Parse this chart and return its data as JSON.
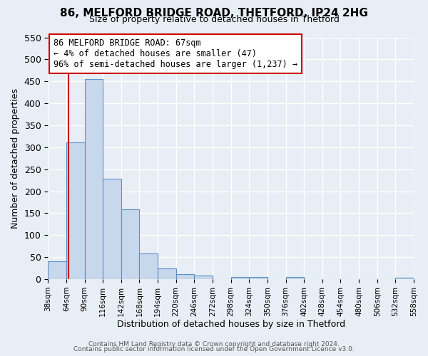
{
  "title1": "86, MELFORD BRIDGE ROAD, THETFORD, IP24 2HG",
  "title2": "Size of property relative to detached houses in Thetford",
  "xlabel": "Distribution of detached houses by size in Thetford",
  "ylabel": "Number of detached properties",
  "bar_color": "#c8d8ec",
  "bar_edge_color": "#5b8fc7",
  "background_color": "#e8eef5",
  "grid_color": "#ffffff",
  "bins": [
    38,
    64,
    90,
    116,
    142,
    168,
    194,
    220,
    246,
    272,
    298,
    324,
    350,
    376,
    402,
    428,
    454,
    480,
    506,
    532,
    558
  ],
  "counts": [
    40,
    311,
    456,
    229,
    159,
    58,
    25,
    12,
    8,
    0,
    5,
    5,
    0,
    5,
    0,
    0,
    0,
    0,
    0,
    4
  ],
  "tick_labels": [
    "38sqm",
    "64sqm",
    "90sqm",
    "116sqm",
    "142sqm",
    "168sqm",
    "194sqm",
    "220sqm",
    "246sqm",
    "272sqm",
    "298sqm",
    "324sqm",
    "350sqm",
    "376sqm",
    "402sqm",
    "428sqm",
    "454sqm",
    "480sqm",
    "506sqm",
    "532sqm",
    "558sqm"
  ],
  "property_size": 67,
  "vline_color": "#cc0000",
  "box_text_line1": "86 MELFORD BRIDGE ROAD: 67sqm",
  "box_text_line2": "← 4% of detached houses are smaller (47)",
  "box_text_line3": "96% of semi-detached houses are larger (1,237) →",
  "box_color": "#cc0000",
  "ylim": [
    0,
    550
  ],
  "yticks": [
    0,
    50,
    100,
    150,
    200,
    250,
    300,
    350,
    400,
    450,
    500,
    550
  ],
  "footer1": "Contains HM Land Registry data © Crown copyright and database right 2024.",
  "footer2": "Contains public sector information licensed under the Open Government Licence v3.0."
}
